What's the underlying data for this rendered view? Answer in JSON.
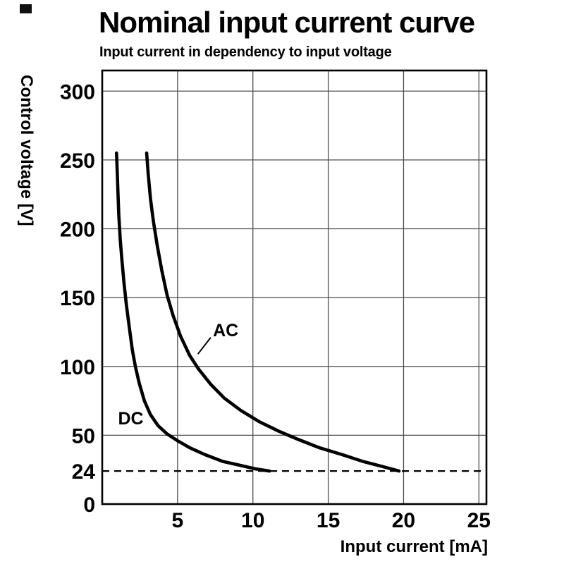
{
  "chart_data": {
    "type": "line",
    "title": "Nominal input current curve",
    "subtitle": "Input current in dependency to input voltage",
    "xlabel": "Input current [mA]",
    "ylabel": "Control voltage [V]",
    "xlim": [
      0,
      25.5
    ],
    "ylim": [
      0,
      315
    ],
    "x_ticks": [
      5,
      10,
      15,
      20,
      25
    ],
    "y_ticks": [
      0,
      24,
      50,
      100,
      150,
      200,
      250,
      300
    ],
    "x_gridlines": [
      5,
      10,
      15,
      20,
      25
    ],
    "y_gridlines": [
      50,
      100,
      150,
      200,
      250,
      300
    ],
    "dashed_line_y": 24,
    "grid": true,
    "legend_position": "inline-curve-labels",
    "colors": {
      "curve": "#000000",
      "grid": "#4d4d4d",
      "axis": "#000000",
      "background": "#ffffff"
    },
    "series": [
      {
        "name": "DC",
        "label_pos": [
          1.05,
          58
        ],
        "points": [
          [
            0.95,
            255
          ],
          [
            1.0,
            240
          ],
          [
            1.05,
            225
          ],
          [
            1.1,
            210
          ],
          [
            1.2,
            192
          ],
          [
            1.3,
            178
          ],
          [
            1.45,
            160
          ],
          [
            1.6,
            145
          ],
          [
            1.8,
            128
          ],
          [
            2.0,
            112
          ],
          [
            2.2,
            100
          ],
          [
            2.45,
            88
          ],
          [
            2.8,
            75
          ],
          [
            3.2,
            65
          ],
          [
            3.7,
            57
          ],
          [
            4.3,
            51
          ],
          [
            5.0,
            46
          ],
          [
            5.8,
            41
          ],
          [
            6.8,
            36
          ],
          [
            8.0,
            31
          ],
          [
            9.2,
            28
          ],
          [
            10.2,
            25.5
          ],
          [
            11.1,
            24
          ]
        ]
      },
      {
        "name": "AC",
        "label_pos": [
          7.35,
          122
        ],
        "leader": [
          [
            6.35,
            109
          ],
          [
            7.2,
            121
          ]
        ],
        "points": [
          [
            2.95,
            255
          ],
          [
            3.05,
            240
          ],
          [
            3.2,
            222
          ],
          [
            3.4,
            205
          ],
          [
            3.65,
            188
          ],
          [
            3.95,
            170
          ],
          [
            4.3,
            152
          ],
          [
            4.7,
            137
          ],
          [
            5.2,
            122
          ],
          [
            5.8,
            108
          ],
          [
            6.4,
            98
          ],
          [
            7.2,
            87
          ],
          [
            8.1,
            77
          ],
          [
            9.2,
            68
          ],
          [
            10.4,
            60
          ],
          [
            11.7,
            53
          ],
          [
            13.0,
            47
          ],
          [
            14.4,
            41
          ],
          [
            15.9,
            36
          ],
          [
            17.3,
            31
          ],
          [
            18.7,
            27
          ],
          [
            19.7,
            24
          ]
        ]
      }
    ]
  }
}
